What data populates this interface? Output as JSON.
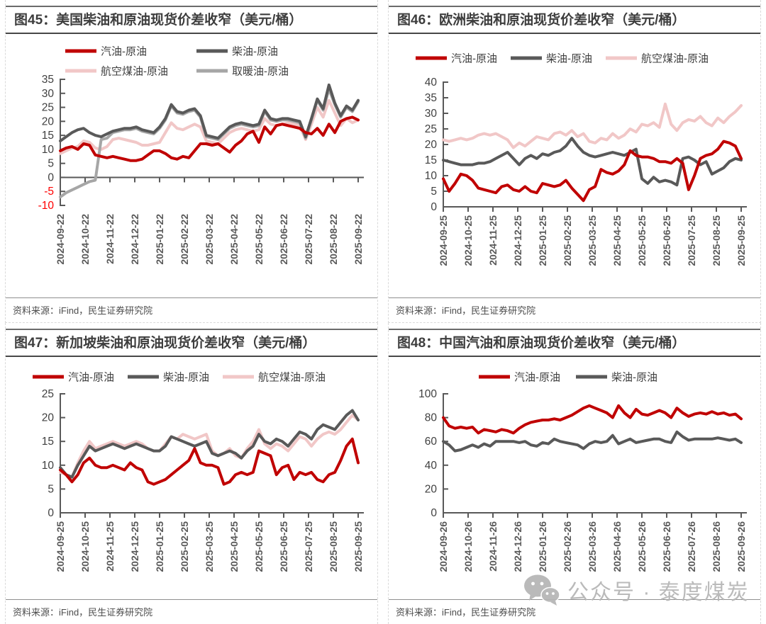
{
  "watermark": {
    "text": "公众号 · 泰度煤炭",
    "icon": "wechat-icon"
  },
  "panels": [
    {
      "title": "图45：美国柴油和原油现货价差收窄（美元/桶）",
      "source": "资料来源：iFind，民生证券研究院"
    },
    {
      "title": "图46：欧洲柴油和原油现货价差收窄（美元/桶）",
      "source": "资料来源：iFind，民生证券研究院"
    },
    {
      "title": "图47：新加坡柴油和原油现货价差收窄（美元/桶）",
      "source": "资料来源：iFind，民生证券研究院"
    },
    {
      "title": "图48：中国汽油和原油现货价差收窄（美元/桶）",
      "source": "资料来源：iFind，民生证券研究院"
    }
  ],
  "chart_data": [
    {
      "type": "line",
      "title": "图45：美国柴油和原油现货价差收窄（美元/桶）",
      "xlabel": "",
      "ylabel": "",
      "grid": false,
      "legend_position": "top",
      "ylim": [
        -10,
        35
      ],
      "yticks": [
        35,
        30,
        25,
        20,
        15,
        10,
        5,
        0,
        -5,
        -10
      ],
      "red_yticks": [
        -5,
        -10
      ],
      "axis_at_zero": true,
      "x_tick_labels": [
        "2024-09-22",
        "2024-10-22",
        "2024-11-22",
        "2024-12-22",
        "2025-01-22",
        "2025-02-22",
        "2025-03-22",
        "2025-04-22",
        "2025-05-22",
        "2025-06-22",
        "2025-07-22",
        "2025-08-22",
        "2025-09-22"
      ],
      "series": [
        {
          "name": "航空煤油-原油",
          "color": "#F1C7C7",
          "values": [
            8.5,
            9.5,
            10.5,
            11,
            13,
            12.5,
            10.5,
            10,
            11,
            13.5,
            14,
            13.5,
            13,
            12.5,
            11.5,
            11.5,
            12,
            12.5,
            16,
            19.5,
            17.5,
            17,
            18,
            19,
            18,
            13,
            12.5,
            12,
            14,
            16,
            17,
            17.5,
            17,
            16.5,
            17,
            21,
            19,
            18.5,
            19,
            19.5,
            19,
            18.5,
            13.5,
            19,
            25,
            21.5,
            27.5,
            23,
            18.5,
            21,
            19.5,
            20.5
          ]
        },
        {
          "name": "取暖油-原油",
          "color": "#A6A6A6",
          "values": [
            -7,
            -5.5,
            -4.5,
            -3.5,
            -2.5,
            -1.5,
            -1,
            13.5,
            14,
            16,
            16.5,
            17,
            17,
            17.5,
            16.5,
            16,
            15.5,
            17.5,
            20.5,
            25.5,
            23,
            22.5,
            23.5,
            24,
            21.5,
            14.5,
            14,
            13.5,
            15.5,
            17.5,
            18.5,
            19,
            18.5,
            18,
            18.5,
            23.5,
            20.5,
            20,
            20.5,
            20.5,
            20,
            19.5,
            14,
            20.5,
            27.5,
            24,
            31.5,
            26,
            21.5,
            25,
            23.5,
            27
          ]
        },
        {
          "name": "柴油-原油",
          "color": "#595959",
          "values": [
            13,
            14.5,
            16,
            17,
            17.5,
            16,
            15,
            14.5,
            15.5,
            16.5,
            17,
            17.5,
            17.5,
            18,
            17,
            16.5,
            16,
            18,
            21,
            26,
            23.5,
            23,
            24,
            24.5,
            22,
            15,
            14.5,
            14,
            16,
            18,
            19,
            19.5,
            19,
            18.5,
            19,
            24,
            21,
            20.5,
            21,
            21,
            20.5,
            20,
            14.5,
            21,
            28,
            24.5,
            33,
            26.5,
            22,
            25.5,
            24,
            27.5
          ]
        },
        {
          "name": "汽油-原油",
          "color": "#C00000",
          "values": [
            9.5,
            10.5,
            11,
            10,
            12,
            11.5,
            8,
            7.5,
            7,
            7.5,
            7,
            6.5,
            6,
            6,
            6.5,
            8,
            9.5,
            9.5,
            8.5,
            7,
            6.5,
            7.5,
            7,
            9.5,
            12,
            12,
            11.5,
            12,
            10.5,
            9,
            11.5,
            13,
            15.5,
            16.5,
            12.5,
            18,
            15.5,
            18.5,
            19,
            18.5,
            18,
            17.5,
            16,
            15.5,
            17.5,
            15,
            19,
            16,
            20,
            21,
            21.5,
            20.5
          ]
        }
      ],
      "legend_order": [
        "汽油-原油",
        "柴油-原油",
        "航空煤油-原油",
        "取暖油-原油"
      ]
    },
    {
      "type": "line",
      "title": "图46：欧洲柴油和原油现货价差收窄（美元/桶）",
      "xlabel": "",
      "ylabel": "",
      "grid": false,
      "legend_position": "top",
      "ylim": [
        0,
        40
      ],
      "yticks": [
        40,
        35,
        30,
        25,
        20,
        15,
        10,
        5,
        0
      ],
      "red_yticks": [],
      "axis_at_zero": false,
      "x_tick_labels": [
        "2024-09-25",
        "2024-10-25",
        "2024-11-25",
        "2024-12-25",
        "2025-01-25",
        "2025-02-25",
        "2025-03-25",
        "2025-04-25",
        "2025-05-25",
        "2025-06-25",
        "2025-07-25",
        "2025-08-25",
        "2025-09-25"
      ],
      "series": [
        {
          "name": "航空煤油-原油",
          "color": "#F1C7C7",
          "values": [
            21.5,
            21,
            21.5,
            22,
            21.5,
            22,
            23,
            23.5,
            23,
            23.5,
            22.5,
            21.5,
            19,
            20.5,
            19.5,
            21,
            22.5,
            22,
            21.5,
            23.5,
            24,
            23,
            24.5,
            22.5,
            23.5,
            21,
            20.5,
            22,
            21.5,
            23.5,
            22,
            23,
            25,
            24,
            26.5,
            26,
            27,
            25.5,
            33,
            26.5,
            24.5,
            27,
            28,
            27.5,
            29,
            27,
            26,
            28.5,
            27,
            29,
            30.5,
            32.5
          ]
        },
        {
          "name": "柴油-原油",
          "color": "#595959",
          "values": [
            15,
            14.5,
            14,
            13.5,
            13.5,
            13.5,
            14,
            14,
            14.5,
            15.5,
            16.5,
            17.5,
            15.5,
            13.5,
            15.5,
            16.5,
            15.5,
            17,
            16.5,
            17.5,
            18,
            19.5,
            22,
            19.5,
            17.5,
            16.5,
            16,
            16.5,
            17,
            17.5,
            17,
            16.5,
            17.5,
            18.5,
            9,
            7.5,
            9.5,
            8,
            8.5,
            8,
            7,
            15.5,
            16,
            15,
            13.5,
            14.5,
            10.5,
            11.5,
            12.5,
            14.5,
            15.5,
            15
          ]
        },
        {
          "name": "汽油-原油",
          "color": "#C00000",
          "values": [
            9,
            5,
            7.5,
            10.5,
            10,
            8.5,
            6,
            5.5,
            5,
            4.5,
            6.5,
            7,
            5.5,
            5,
            6.5,
            5,
            4.5,
            7.5,
            7,
            6.5,
            7,
            8.5,
            6,
            4,
            2,
            5.5,
            6.5,
            12,
            11,
            10.5,
            11.5,
            13.5,
            18,
            16.5,
            16,
            16,
            15.5,
            14.5,
            14.5,
            14,
            15.5,
            14,
            5.5,
            10,
            15.5,
            16.5,
            17,
            18.5,
            21,
            20.5,
            19.5,
            15.5
          ]
        }
      ],
      "legend_order": [
        "汽油-原油",
        "柴油-原油",
        "航空煤油-原油"
      ]
    },
    {
      "type": "line",
      "title": "图47：新加坡柴油和原油现货价差收窄（美元/桶）",
      "xlabel": "",
      "ylabel": "",
      "grid": false,
      "legend_position": "top",
      "ylim": [
        0,
        25
      ],
      "yticks": [
        25,
        20,
        15,
        10,
        5,
        0
      ],
      "red_yticks": [],
      "axis_at_zero": false,
      "x_tick_labels": [
        "2024-09-25",
        "2024-10-25",
        "2024-11-25",
        "2024-12-25",
        "2025-01-25",
        "2025-02-25",
        "2025-03-25",
        "2025-04-25",
        "2025-05-25",
        "2025-06-25",
        "2025-07-25",
        "2025-08-25",
        "2025-09-25"
      ],
      "series": [
        {
          "name": "航空煤油-原油",
          "color": "#F1C7C7",
          "values": [
            8.5,
            8,
            7.5,
            10.5,
            13,
            15,
            13.5,
            14,
            14.5,
            15,
            14.5,
            14,
            14.5,
            15,
            14.5,
            13.5,
            13,
            13,
            14.5,
            16,
            15.5,
            16.5,
            16,
            15.5,
            16,
            16.5,
            13,
            12,
            12.5,
            13.5,
            12,
            11.5,
            13.5,
            15,
            17.5,
            14.5,
            13.5,
            14.5,
            14,
            13,
            14.5,
            16,
            15.5,
            14,
            15.5,
            16.5,
            17,
            16.5,
            17.5,
            19,
            20.5,
            19.5
          ]
        },
        {
          "name": "柴油-原油",
          "color": "#595959",
          "values": [
            9.5,
            8,
            7.5,
            10,
            12,
            14,
            13,
            13.5,
            14,
            14.5,
            14,
            13.5,
            14,
            14.5,
            14,
            13.5,
            13,
            13,
            14,
            16,
            15.5,
            15,
            14.5,
            14,
            14.5,
            15,
            12.5,
            12,
            12.5,
            13,
            12.5,
            11.5,
            13,
            14,
            16.5,
            15,
            14.5,
            15.5,
            15,
            14,
            15.5,
            17,
            16.5,
            15.5,
            17.5,
            18.5,
            18,
            17.5,
            19,
            20.5,
            21.5,
            19.5
          ]
        },
        {
          "name": "汽油-原油",
          "color": "#C00000",
          "values": [
            9,
            8,
            6.5,
            8,
            10.5,
            11.5,
            10,
            9.5,
            9.5,
            10,
            9.5,
            9,
            10.5,
            9.5,
            9,
            6.5,
            6,
            6.5,
            7,
            8,
            9,
            10,
            11,
            13.5,
            10.5,
            10,
            10,
            9.5,
            6,
            6.5,
            8,
            8.5,
            8,
            8.5,
            13,
            12.5,
            12,
            8,
            9.5,
            10,
            7,
            8.5,
            8,
            8.5,
            7,
            6.5,
            8,
            8.5,
            11,
            14,
            15.5,
            10.5
          ]
        }
      ],
      "legend_order": [
        "汽油-原油",
        "柴油-原油",
        "航空煤油-原油"
      ]
    },
    {
      "type": "line",
      "title": "图48：中国汽油和原油现货价差收窄（美元/桶）",
      "xlabel": "",
      "ylabel": "",
      "grid": false,
      "legend_position": "top",
      "ylim": [
        0,
        100
      ],
      "yticks": [
        100,
        80,
        60,
        40,
        20,
        0
      ],
      "red_yticks": [],
      "axis_at_zero": false,
      "x_tick_labels": [
        "2024-09-26",
        "2024-10-26",
        "2024-11-26",
        "2024-12-26",
        "2025-01-26",
        "2025-02-26",
        "2025-03-26",
        "2025-04-26",
        "2025-05-26",
        "2025-06-26",
        "2025-07-26",
        "2025-08-26",
        "2025-09-26"
      ],
      "series": [
        {
          "name": "柴油-原油",
          "color": "#595959",
          "values": [
            60,
            57,
            52,
            53,
            55,
            57,
            55,
            58,
            56,
            60,
            60,
            60,
            60,
            59,
            60,
            57,
            56,
            59,
            58,
            62,
            60,
            59,
            58,
            57,
            54,
            58,
            60,
            59,
            60,
            65,
            58,
            60,
            62,
            59,
            60,
            61,
            62,
            62,
            60,
            59,
            68,
            64,
            61,
            62,
            62,
            62,
            62,
            63,
            62,
            61,
            62,
            59
          ]
        },
        {
          "name": "汽油-原油",
          "color": "#C00000",
          "values": [
            80,
            73,
            71,
            72,
            71,
            72,
            67,
            70,
            69,
            68,
            70,
            69,
            67,
            71,
            74,
            76,
            77,
            78,
            78,
            79,
            78,
            80,
            82,
            85,
            88,
            90,
            88,
            86,
            84,
            80,
            90,
            84,
            80,
            87,
            83,
            82,
            84,
            86,
            84,
            80,
            88,
            84,
            81,
            83,
            84,
            83,
            85,
            83,
            84,
            82,
            83,
            79
          ]
        }
      ],
      "legend_order": [
        "汽油-原油",
        "柴油-原油"
      ]
    }
  ]
}
